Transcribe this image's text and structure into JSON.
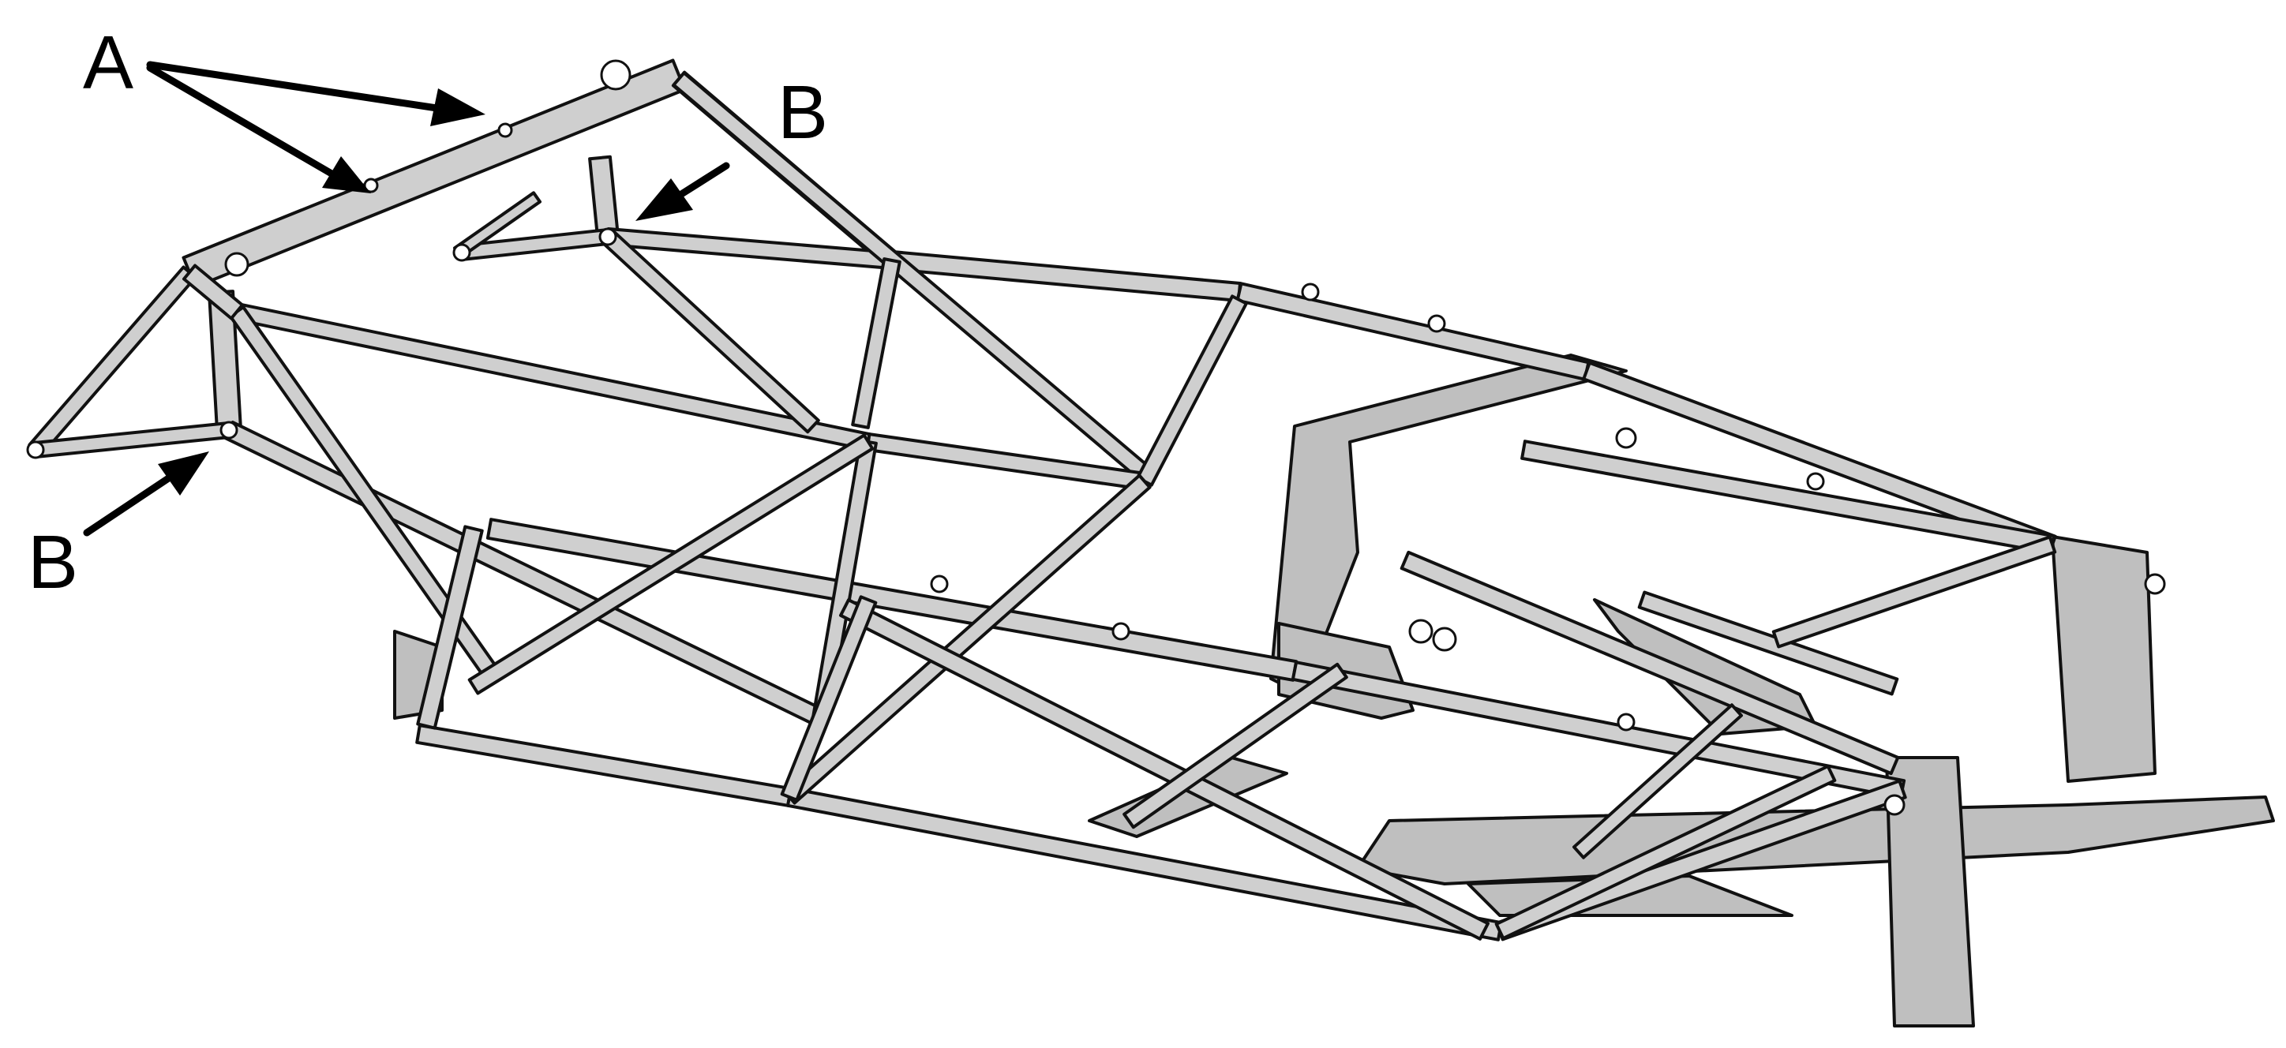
{
  "labels": {
    "a": "A",
    "b_top": "B",
    "b_left": "B"
  },
  "colors": {
    "tube_fill": "#cfcfcf",
    "plate_fill": "#bfbfbf",
    "outline": "#111111",
    "background": "#ffffff"
  }
}
